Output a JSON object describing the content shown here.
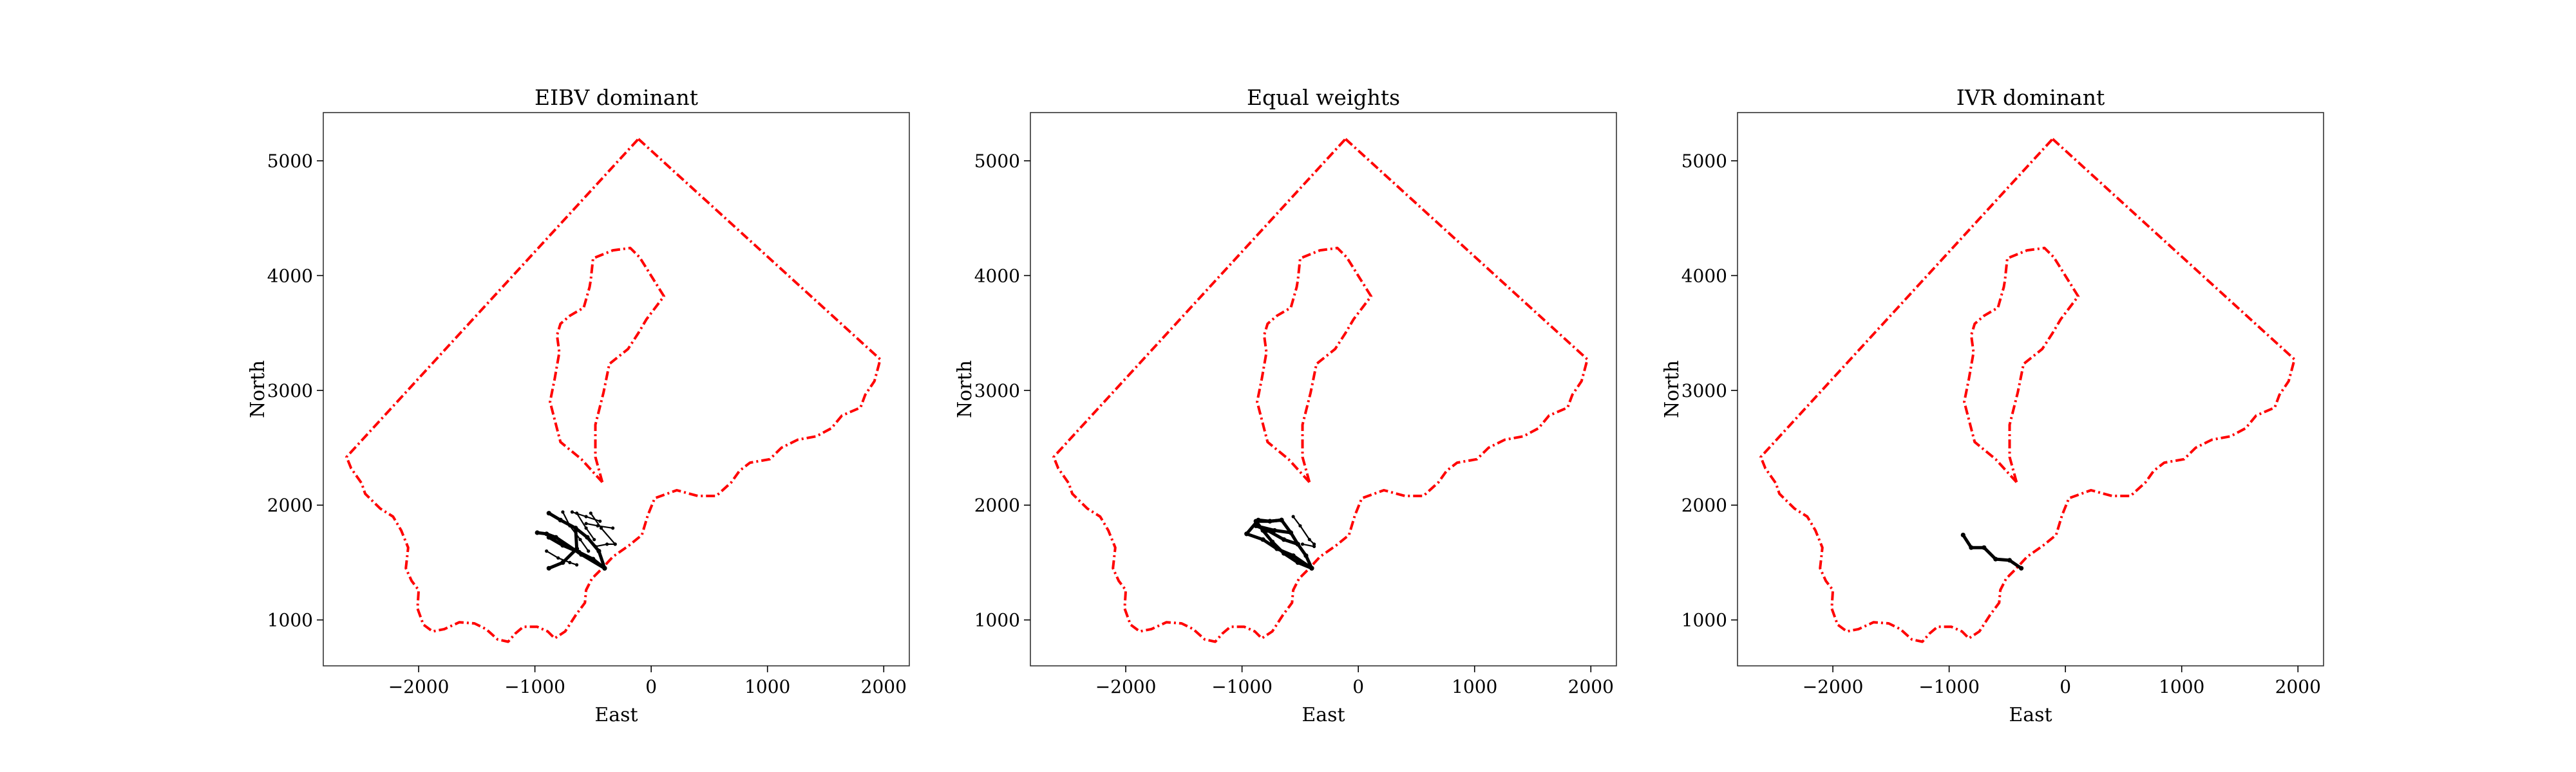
{
  "chart_data": [
    {
      "type": "line",
      "title": "EIBV dominant",
      "xlabel": "East",
      "ylabel": "North",
      "xlim": [
        -2820,
        2220
      ],
      "ylim": [
        600,
        5420
      ],
      "xticks": [
        -2000,
        -1000,
        0,
        1000,
        2000
      ],
      "yticks": [
        1000,
        2000,
        3000,
        4000,
        5000
      ],
      "xtick_labels": [
        "−2000",
        "−1000",
        "0",
        "1000",
        "2000"
      ],
      "ytick_labels": [
        "1000",
        "2000",
        "3000",
        "4000",
        "5000"
      ],
      "grid": false,
      "series": [
        {
          "role": "boundary",
          "color": "#ff0000"
        },
        {
          "role": "obstacle",
          "color": "#ff0000"
        },
        {
          "role": "path",
          "color": "#000000",
          "segments": [
            {
              "weight": "thick",
              "points": [
                [
                  -400,
                  1450
                ],
                [
                  -450,
                  1600
                ],
                [
                  -550,
                  1720
                ],
                [
                  -650,
                  1800
                ],
                [
                  -780,
                  1870
                ],
                [
                  -880,
                  1930
                ]
              ]
            },
            {
              "weight": "thick",
              "points": [
                [
                  -400,
                  1450
                ],
                [
                  -500,
                  1530
                ],
                [
                  -620,
                  1590
                ],
                [
                  -760,
                  1650
                ],
                [
                  -880,
                  1720
                ]
              ]
            },
            {
              "weight": "thick",
              "points": [
                [
                  -400,
                  1450
                ],
                [
                  -600,
                  1570
                ],
                [
                  -820,
                  1720
                ],
                [
                  -900,
                  1750
                ],
                [
                  -980,
                  1760
                ]
              ]
            },
            {
              "weight": "thick",
              "points": [
                [
                  -650,
                  1800
                ],
                [
                  -640,
                  1620
                ],
                [
                  -760,
                  1500
                ],
                [
                  -880,
                  1450
                ]
              ]
            },
            {
              "weight": "thin",
              "points": [
                [
                  -480,
                  1640
                ],
                [
                  -380,
                  1660
                ],
                [
                  -310,
                  1660
                ]
              ]
            },
            {
              "weight": "thin",
              "points": [
                [
                  -560,
                  1840
                ],
                [
                  -460,
                  1820
                ],
                [
                  -330,
                  1800
                ]
              ]
            },
            {
              "weight": "thin",
              "points": [
                [
                  -680,
                  1940
                ],
                [
                  -560,
                  1900
                ],
                [
                  -440,
                  1860
                ]
              ]
            },
            {
              "weight": "thin",
              "points": [
                [
                  -760,
                  1940
                ],
                [
                  -700,
                  1820
                ],
                [
                  -610,
                  1700
                ],
                [
                  -540,
                  1600
                ]
              ]
            },
            {
              "weight": "thin",
              "points": [
                [
                  -640,
                  1930
                ],
                [
                  -560,
                  1800
                ],
                [
                  -490,
                  1700
                ]
              ]
            },
            {
              "weight": "thin",
              "points": [
                [
                  -520,
                  1930
                ],
                [
                  -430,
                  1800
                ],
                [
                  -310,
                  1660
                ]
              ]
            },
            {
              "weight": "thin",
              "points": [
                [
                  -900,
                  1600
                ],
                [
                  -800,
                  1540
                ],
                [
                  -700,
                  1500
                ],
                [
                  -640,
                  1480
                ]
              ]
            }
          ]
        }
      ]
    },
    {
      "type": "line",
      "title": "Equal weights",
      "xlabel": "East",
      "ylabel": "North",
      "xlim": [
        -2820,
        2220
      ],
      "ylim": [
        600,
        5420
      ],
      "xticks": [
        -2000,
        -1000,
        0,
        1000,
        2000
      ],
      "yticks": [
        1000,
        2000,
        3000,
        4000,
        5000
      ],
      "xtick_labels": [
        "−2000",
        "−1000",
        "0",
        "1000",
        "2000"
      ],
      "ytick_labels": [
        "1000",
        "2000",
        "3000",
        "4000",
        "5000"
      ],
      "grid": false,
      "series": [
        {
          "role": "boundary",
          "color": "#ff0000"
        },
        {
          "role": "obstacle",
          "color": "#ff0000"
        },
        {
          "role": "path",
          "color": "#000000",
          "segments": [
            {
              "weight": "thick",
              "points": [
                [
                  -400,
                  1450
                ],
                [
                  -450,
                  1560
                ],
                [
                  -520,
                  1660
                ],
                [
                  -580,
                  1760
                ],
                [
                  -660,
                  1870
                ]
              ]
            },
            {
              "weight": "thick",
              "points": [
                [
                  -400,
                  1450
                ],
                [
                  -520,
                  1500
                ],
                [
                  -640,
                  1580
                ],
                [
                  -740,
                  1680
                ],
                [
                  -820,
                  1780
                ],
                [
                  -880,
                  1860
                ]
              ]
            },
            {
              "weight": "thick",
              "points": [
                [
                  -400,
                  1450
                ],
                [
                  -560,
                  1560
                ],
                [
                  -700,
                  1620
                ],
                [
                  -820,
                  1700
                ],
                [
                  -960,
                  1750
                ]
              ]
            },
            {
              "weight": "thick",
              "points": [
                [
                  -520,
                  1660
                ],
                [
                  -640,
                  1700
                ],
                [
                  -780,
                  1780
                ],
                [
                  -880,
                  1820
                ]
              ]
            },
            {
              "weight": "thick",
              "points": [
                [
                  -580,
                  1760
                ],
                [
                  -720,
                  1780
                ],
                [
                  -880,
                  1820
                ]
              ]
            },
            {
              "weight": "thick",
              "points": [
                [
                  -660,
                  1870
                ],
                [
                  -760,
                  1860
                ],
                [
                  -880,
                  1860
                ]
              ]
            },
            {
              "weight": "thick",
              "points": [
                [
                  -960,
                  1750
                ],
                [
                  -860,
                  1870
                ],
                [
                  -760,
                  1860
                ],
                [
                  -660,
                  1870
                ]
              ]
            },
            {
              "weight": "thin",
              "points": [
                [
                  -560,
                  1900
                ],
                [
                  -500,
                  1820
                ],
                [
                  -420,
                  1700
                ],
                [
                  -380,
                  1660
                ]
              ]
            },
            {
              "weight": "thin",
              "points": [
                [
                  -480,
                  1660
                ],
                [
                  -380,
                  1640
                ]
              ]
            }
          ]
        }
      ]
    },
    {
      "type": "line",
      "title": "IVR dominant",
      "xlabel": "East",
      "ylabel": "North",
      "xlim": [
        -2820,
        2220
      ],
      "ylim": [
        600,
        5420
      ],
      "xticks": [
        -2000,
        -1000,
        0,
        1000,
        2000
      ],
      "yticks": [
        1000,
        2000,
        3000,
        4000,
        5000
      ],
      "xtick_labels": [
        "−2000",
        "−1000",
        "0",
        "1000",
        "2000"
      ],
      "ytick_labels": [
        "1000",
        "2000",
        "3000",
        "4000",
        "5000"
      ],
      "grid": false,
      "series": [
        {
          "role": "boundary",
          "color": "#ff0000"
        },
        {
          "role": "obstacle",
          "color": "#ff0000"
        },
        {
          "role": "path",
          "color": "#000000",
          "segments": [
            {
              "weight": "thick",
              "points": [
                [
                  -880,
                  1740
                ],
                [
                  -810,
                  1630
                ],
                [
                  -700,
                  1630
                ],
                [
                  -600,
                  1530
                ],
                [
                  -480,
                  1520
                ],
                [
                  -380,
                  1450
                ]
              ]
            }
          ]
        }
      ]
    }
  ],
  "shared": {
    "boundary": [
      [
        -110,
        5190
      ],
      [
        1970,
        3270
      ],
      [
        1920,
        3080
      ],
      [
        1840,
        2960
      ],
      [
        1800,
        2850
      ],
      [
        1640,
        2780
      ],
      [
        1550,
        2670
      ],
      [
        1420,
        2600
      ],
      [
        1260,
        2570
      ],
      [
        1120,
        2500
      ],
      [
        1020,
        2400
      ],
      [
        850,
        2370
      ],
      [
        760,
        2300
      ],
      [
        690,
        2200
      ],
      [
        560,
        2080
      ],
      [
        400,
        2080
      ],
      [
        220,
        2130
      ],
      [
        30,
        2060
      ],
      [
        -30,
        1910
      ],
      [
        -80,
        1740
      ],
      [
        -190,
        1650
      ],
      [
        -330,
        1550
      ],
      [
        -430,
        1440
      ],
      [
        -510,
        1360
      ],
      [
        -560,
        1260
      ],
      [
        -570,
        1150
      ],
      [
        -650,
        1040
      ],
      [
        -740,
        900
      ],
      [
        -830,
        840
      ],
      [
        -890,
        900
      ],
      [
        -980,
        940
      ],
      [
        -1100,
        940
      ],
      [
        -1170,
        880
      ],
      [
        -1230,
        810
      ],
      [
        -1320,
        830
      ],
      [
        -1420,
        920
      ],
      [
        -1520,
        970
      ],
      [
        -1650,
        980
      ],
      [
        -1780,
        920
      ],
      [
        -1880,
        900
      ],
      [
        -1960,
        960
      ],
      [
        -2010,
        1100
      ],
      [
        -2000,
        1260
      ],
      [
        -2060,
        1340
      ],
      [
        -2110,
        1450
      ],
      [
        -2090,
        1630
      ],
      [
        -2150,
        1780
      ],
      [
        -2220,
        1900
      ],
      [
        -2330,
        1970
      ],
      [
        -2460,
        2100
      ],
      [
        -2490,
        2190
      ],
      [
        -2580,
        2320
      ],
      [
        -2620,
        2420
      ],
      [
        -110,
        5190
      ]
    ],
    "obstacle": [
      [
        -420,
        2200
      ],
      [
        -480,
        2420
      ],
      [
        -480,
        2700
      ],
      [
        -410,
        2980
      ],
      [
        -360,
        3230
      ],
      [
        -200,
        3360
      ],
      [
        -110,
        3500
      ],
      [
        -40,
        3620
      ],
      [
        110,
        3820
      ],
      [
        -100,
        4160
      ],
      [
        -180,
        4240
      ],
      [
        -330,
        4220
      ],
      [
        -500,
        4150
      ],
      [
        -520,
        3960
      ],
      [
        -530,
        3900
      ],
      [
        -580,
        3720
      ],
      [
        -700,
        3650
      ],
      [
        -780,
        3580
      ],
      [
        -810,
        3480
      ],
      [
        -790,
        3330
      ],
      [
        -830,
        3100
      ],
      [
        -870,
        2900
      ],
      [
        -780,
        2550
      ],
      [
        -600,
        2400
      ],
      [
        -420,
        2200
      ]
    ]
  }
}
